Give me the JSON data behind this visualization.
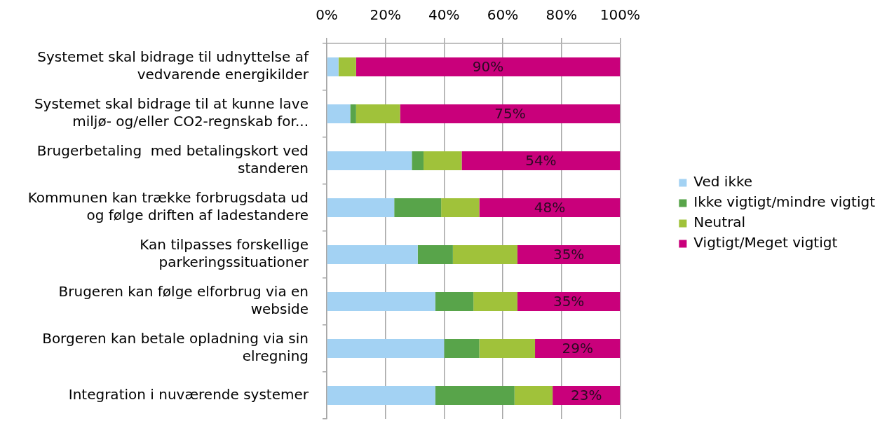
{
  "chart_data": {
    "type": "bar",
    "orientation": "horizontal",
    "stacked": true,
    "categories": [
      "Systemet skal bidrage til udnyttelse af vedvarende energikilder",
      "Systemet skal bidrage til at kunne lave miljø- og/eller CO2-regnskab for...",
      "Brugerbetaling  med betalingskort ved standeren",
      "Kommunen kan trække forbrugsdata ud og følge driften af ladestandere",
      "Kan tilpasses forskellige parkeringssituationer",
      "Brugeren kan følge elforbrug via en webside",
      "Borgeren kan betale opladning via sin elregning",
      "Integration i nuværende systemer"
    ],
    "series": [
      {
        "name": "Ved ikke",
        "color": "#a3d2f3",
        "values": [
          4,
          8,
          29,
          23,
          31,
          37,
          40,
          37
        ]
      },
      {
        "name": "Ikke vigtigt/mindre vigtigt",
        "color": "#58a44a",
        "values": [
          0,
          2,
          4,
          16,
          12,
          13,
          12,
          27
        ]
      },
      {
        "name": "Neutral",
        "color": "#a0c23a",
        "values": [
          6,
          15,
          13,
          13,
          22,
          15,
          19,
          13
        ]
      },
      {
        "name": "Vigtigt/Meget vigtigt",
        "color": "#c9007b",
        "values": [
          90,
          75,
          54,
          48,
          35,
          35,
          29,
          23
        ],
        "value_labels": [
          "90%",
          "75%",
          "54%",
          "48%",
          "35%",
          "35%",
          "29%",
          "23%"
        ]
      }
    ],
    "xlim": [
      0,
      100
    ],
    "xticks": [
      {
        "value": 0,
        "label": "0%"
      },
      {
        "value": 20,
        "label": "20%"
      },
      {
        "value": 40,
        "label": "40%"
      },
      {
        "value": 60,
        "label": "60%"
      },
      {
        "value": 80,
        "label": "80%"
      },
      {
        "value": 100,
        "label": "100%"
      }
    ],
    "grid": "x",
    "legend": "right"
  }
}
